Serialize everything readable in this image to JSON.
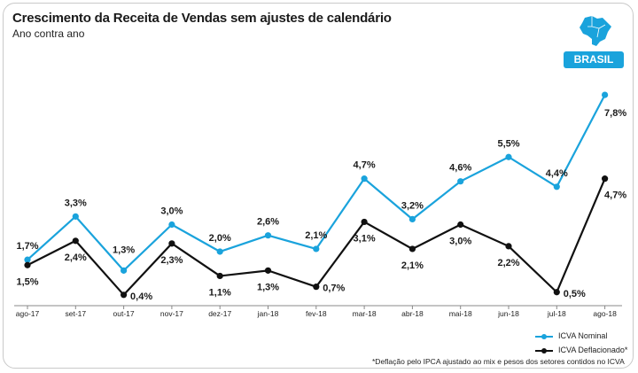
{
  "header": {
    "title": "Crescimento da Receita de Vendas sem ajustes de calendário",
    "subtitle": "Ano contra ano"
  },
  "region": {
    "label": "BRASIL",
    "icon": "brazil-map-icon",
    "color": "#1aa3dc"
  },
  "footnote": "*Deflação pelo IPCA ajustado ao mix e pesos dos setores contidos no ICVA",
  "chart_data": {
    "type": "line",
    "title": "Crescimento da Receita de Vendas sem ajustes de calendário",
    "subtitle": "Ano contra ano",
    "categories": [
      "ago-17",
      "set-17",
      "out-17",
      "nov-17",
      "dez-17",
      "jan-18",
      "fev-18",
      "mar-18",
      "abr-18",
      "mai-18",
      "jun-18",
      "jul-18",
      "ago-18"
    ],
    "series": [
      {
        "name": "ICVA Nominal",
        "color": "#1aa3dc",
        "values": [
          1.7,
          3.3,
          1.3,
          3.0,
          2.0,
          2.6,
          2.1,
          4.7,
          3.2,
          4.6,
          5.5,
          4.4,
          7.8
        ],
        "labels": [
          "1,7%",
          "3,3%",
          "1,3%",
          "3,0%",
          "2,0%",
          "2,6%",
          "2,1%",
          "4,7%",
          "3,2%",
          "4,6%",
          "5,5%",
          "4,4%",
          "7,8%"
        ]
      },
      {
        "name": "ICVA Deflacionado*",
        "color": "#111111",
        "values": [
          1.5,
          2.4,
          0.4,
          2.3,
          1.1,
          1.3,
          0.7,
          3.1,
          2.1,
          3.0,
          2.2,
          0.5,
          4.7
        ],
        "labels": [
          "1,5%",
          "2,4%",
          "0,4%",
          "2,3%",
          "1,1%",
          "1,3%",
          "0,7%",
          "3,1%",
          "2,1%",
          "3,0%",
          "2,2%",
          "0,5%",
          "4,7%"
        ]
      }
    ],
    "grid": false,
    "legend_position": "bottom-right"
  }
}
